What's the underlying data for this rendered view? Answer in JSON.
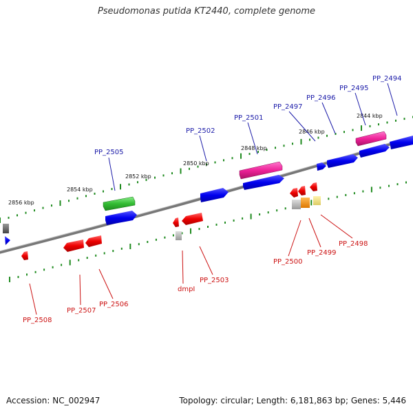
{
  "header": {
    "title": "Pseudomonas putida KT2440, complete genome"
  },
  "footer": {
    "accession": "Accession: NC_002947",
    "topology": "Topology: circular; Length: 6,181,863 bp; Genes: 5,446"
  },
  "ruler": {
    "labels": [
      "2856 kbp",
      "2854 kbp",
      "2852 kbp",
      "2850 kbp",
      "2848 kbp",
      "2846 kbp",
      "2844 kbp"
    ]
  },
  "genes_top": [
    "PP_2505",
    "PP_2502",
    "PP_2501",
    "PP_2497",
    "PP_2496",
    "PP_2495",
    "PP_2494"
  ],
  "genes_bottom": [
    "PP_2508",
    "PP_2507",
    "PP_2506",
    "dmpI",
    "PP_2503",
    "PP_2500",
    "PP_2499",
    "PP_2498"
  ],
  "colors": {
    "backbone": "#777777",
    "tick": "#1e8a1e",
    "forward_gene": "#0000ee",
    "reverse_gene": "#ee0000",
    "rna": "#ee2299",
    "green_feature": "#33bb33",
    "orange_feature": "#ee8800",
    "yellow_feature": "#eedd77",
    "grey_feature": "#aaaaaa"
  }
}
